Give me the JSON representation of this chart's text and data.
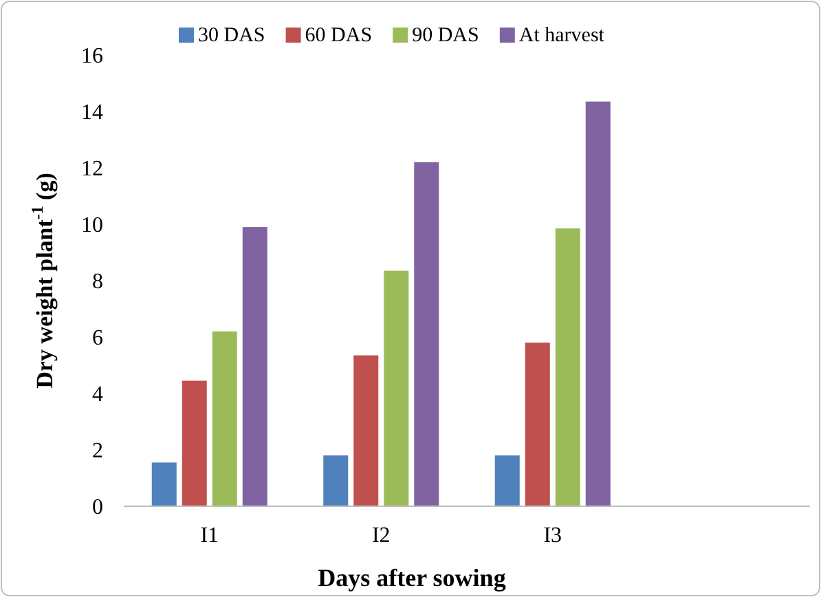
{
  "chart_data": {
    "type": "bar",
    "xlabel": "Days after sowing",
    "ylabel": "Dry weight plant$^{-1}$ (g)",
    "categories": [
      "I1",
      "I2",
      "I3",
      null
    ],
    "series": [
      {
        "name": "30 DAS",
        "color": "#4f81bd",
        "values": [
          1.55,
          1.8,
          1.8,
          null
        ]
      },
      {
        "name": "60 DAS",
        "color": "#c0504d",
        "values": [
          4.45,
          5.35,
          5.8,
          null
        ]
      },
      {
        "name": "90 DAS",
        "color": "#9bbb59",
        "values": [
          6.2,
          8.35,
          9.85,
          null
        ]
      },
      {
        "name": "At harvest",
        "color": "#8064a2",
        "values": [
          9.9,
          12.2,
          14.35,
          null
        ]
      }
    ],
    "ylim": [
      0,
      16
    ],
    "yticks": [
      0,
      2,
      4,
      6,
      8,
      10,
      12,
      14,
      16
    ],
    "grid": false,
    "legend": "top"
  }
}
